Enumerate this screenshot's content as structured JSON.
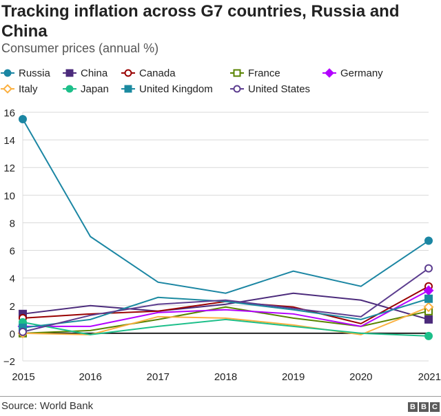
{
  "chart_data": {
    "type": "line",
    "title": "Tracking inflation across G7 countries, Russia and China",
    "subtitle": "Consumer prices (annual %)",
    "x": [
      2015,
      2016,
      2017,
      2018,
      2019,
      2020,
      2021
    ],
    "ylim": [
      -2,
      16
    ],
    "yticks": [
      -2,
      0,
      2,
      4,
      6,
      8,
      10,
      12,
      14,
      16
    ],
    "ytick_labels": [
      "−2",
      "0",
      "2",
      "4",
      "6",
      "8",
      "10",
      "12",
      "14",
      "16"
    ],
    "grid": true,
    "legend_placement": "top",
    "series": [
      {
        "name": "Russia",
        "color": "#1b86a3",
        "marker": "circle",
        "filled": true,
        "values": [
          15.5,
          7.0,
          3.7,
          2.9,
          4.5,
          3.4,
          6.7
        ]
      },
      {
        "name": "China",
        "color": "#4b2a7b",
        "marker": "square",
        "filled": true,
        "values": [
          1.4,
          2.0,
          1.6,
          2.1,
          2.9,
          2.4,
          1.0
        ]
      },
      {
        "name": "Canada",
        "color": "#990000",
        "marker": "circle",
        "filled": false,
        "values": [
          1.1,
          1.4,
          1.6,
          2.3,
          1.9,
          0.7,
          3.4
        ]
      },
      {
        "name": "France",
        "color": "#588300",
        "marker": "square",
        "filled": false,
        "values": [
          0.0,
          0.2,
          1.0,
          1.9,
          1.1,
          0.5,
          1.6
        ]
      },
      {
        "name": "Germany",
        "color": "#b300ff",
        "marker": "diamond",
        "filled": true,
        "values": [
          0.5,
          0.5,
          1.5,
          1.7,
          1.4,
          0.5,
          3.1
        ]
      },
      {
        "name": "Italy",
        "color": "#fbb040",
        "marker": "diamond",
        "filled": false,
        "values": [
          0.0,
          -0.1,
          1.2,
          1.1,
          0.6,
          -0.1,
          1.9
        ]
      },
      {
        "name": "Japan",
        "color": "#1dbf8a",
        "marker": "circle",
        "filled": true,
        "values": [
          0.8,
          -0.1,
          0.5,
          1.0,
          0.5,
          0.0,
          -0.2
        ]
      },
      {
        "name": "United Kingdom",
        "color": "#1b8aa0",
        "marker": "square",
        "filled": true,
        "values": [
          0.4,
          1.0,
          2.6,
          2.3,
          1.7,
          1.0,
          2.5
        ]
      },
      {
        "name": "United States",
        "color": "#5c3d8f",
        "marker": "circle",
        "filled": false,
        "values": [
          0.1,
          1.3,
          2.1,
          2.4,
          1.8,
          1.2,
          4.7
        ]
      }
    ]
  },
  "footer": {
    "source": "Source: World Bank",
    "logo": [
      "B",
      "B",
      "C"
    ]
  }
}
